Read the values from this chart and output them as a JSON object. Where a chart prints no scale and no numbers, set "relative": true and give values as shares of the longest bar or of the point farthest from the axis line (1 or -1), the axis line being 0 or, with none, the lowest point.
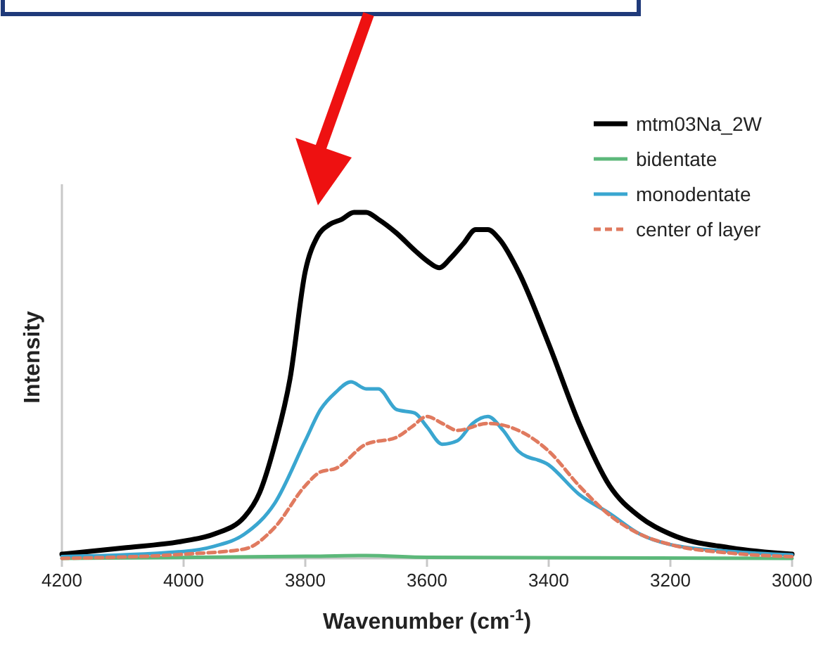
{
  "chart_data": {
    "type": "line",
    "relative": true,
    "xlabel": "Wavenumber (cm$^{-1}$)",
    "ylabel": "Intensity",
    "xlim": [
      4200,
      3000
    ],
    "xticks": [
      4200,
      4000,
      3800,
      3600,
      3400,
      3200,
      3000
    ],
    "legend": "top right",
    "grid": false,
    "series": [
      {
        "name": "mtm03Na_2W",
        "color": "#000000",
        "line_style": "solid",
        "x": [
          4200,
          4100,
          4000,
          3950,
          3900,
          3875,
          3850,
          3825,
          3800,
          3780,
          3760,
          3740,
          3720,
          3700,
          3680,
          3650,
          3620,
          3600,
          3580,
          3560,
          3540,
          3520,
          3500,
          3480,
          3450,
          3400,
          3350,
          3300,
          3250,
          3200,
          3100,
          3000
        ],
        "values": [
          0.012,
          0.03,
          0.05,
          0.07,
          0.12,
          0.19,
          0.33,
          0.52,
          0.83,
          0.93,
          0.965,
          0.98,
          1.0,
          1.0,
          0.98,
          0.94,
          0.89,
          0.86,
          0.84,
          0.87,
          0.91,
          0.95,
          0.95,
          0.92,
          0.83,
          0.62,
          0.39,
          0.21,
          0.12,
          0.07,
          0.03,
          0.012
        ]
      },
      {
        "name": "bidentate",
        "color": "#5cb87a",
        "line_style": "solid",
        "x": [
          4200,
          3800,
          3700,
          3600,
          3000
        ],
        "values": [
          0.0,
          0.006,
          0.008,
          0.003,
          0.0
        ]
      },
      {
        "name": "monodentate",
        "color": "#3aa6d0",
        "line_style": "solid",
        "x": [
          4200,
          4000,
          3950,
          3900,
          3850,
          3800,
          3775,
          3750,
          3725,
          3700,
          3680,
          3650,
          3620,
          3600,
          3575,
          3550,
          3525,
          3500,
          3475,
          3450,
          3400,
          3350,
          3300,
          3250,
          3200,
          3100,
          3000
        ],
        "values": [
          0.005,
          0.02,
          0.035,
          0.07,
          0.16,
          0.34,
          0.43,
          0.48,
          0.51,
          0.49,
          0.49,
          0.43,
          0.42,
          0.38,
          0.33,
          0.34,
          0.39,
          0.41,
          0.37,
          0.31,
          0.27,
          0.185,
          0.13,
          0.07,
          0.04,
          0.02,
          0.01
        ]
      },
      {
        "name": "center of layer",
        "color": "#e07a5f",
        "line_style": "dashed",
        "x": [
          4200,
          4000,
          3900,
          3850,
          3800,
          3775,
          3750,
          3700,
          3650,
          3625,
          3600,
          3575,
          3550,
          3500,
          3450,
          3400,
          3350,
          3300,
          3250,
          3200,
          3100,
          3000
        ],
        "values": [
          0.0,
          0.012,
          0.027,
          0.09,
          0.21,
          0.25,
          0.26,
          0.33,
          0.35,
          0.38,
          0.41,
          0.39,
          0.37,
          0.39,
          0.37,
          0.31,
          0.21,
          0.125,
          0.07,
          0.04,
          0.015,
          0.005
        ]
      }
    ]
  }
}
